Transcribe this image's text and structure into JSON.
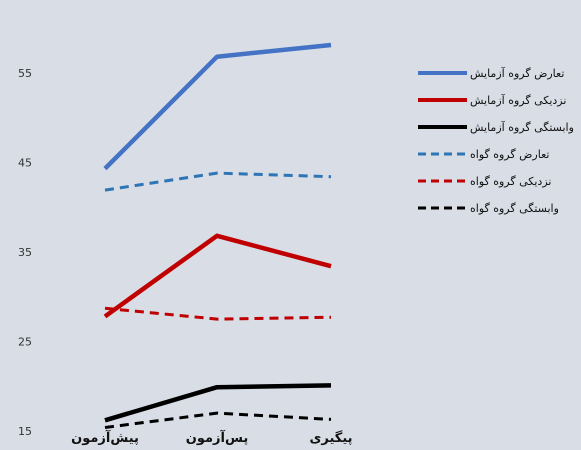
{
  "chart_data": {
    "type": "line",
    "categories": [
      "پیش‌آزمون",
      "پس‌آزمون",
      "پیگیری"
    ],
    "y_ticks": [
      15,
      25,
      35,
      45,
      55
    ],
    "ylim": [
      14,
      60
    ],
    "grid": false,
    "legend_position": "right",
    "series": [
      {
        "name": "تعارض گروه آزمایش",
        "values": [
          44.3,
          56.8,
          58.1
        ],
        "color": "#4472C4",
        "dash": false
      },
      {
        "name": "نزدیکی گروه آزمایش",
        "values": [
          27.8,
          36.8,
          33.4
        ],
        "color": "#C00000",
        "dash": false
      },
      {
        "name": "وابستگی گروه آزمایش",
        "values": [
          16.2,
          19.9,
          20.1
        ],
        "color": "#000000",
        "dash": false
      },
      {
        "name": "تعارض گروه گواه",
        "values": [
          41.9,
          43.8,
          43.4
        ],
        "color": "#2E75B6",
        "dash": true
      },
      {
        "name": "نزدیکی گروه گواه",
        "values": [
          28.7,
          27.5,
          27.7
        ],
        "color": "#C00000",
        "dash": true
      },
      {
        "name": "وابستگی گروه گواه",
        "values": [
          15.4,
          17.0,
          16.3
        ],
        "color": "#000000",
        "dash": true
      }
    ]
  }
}
